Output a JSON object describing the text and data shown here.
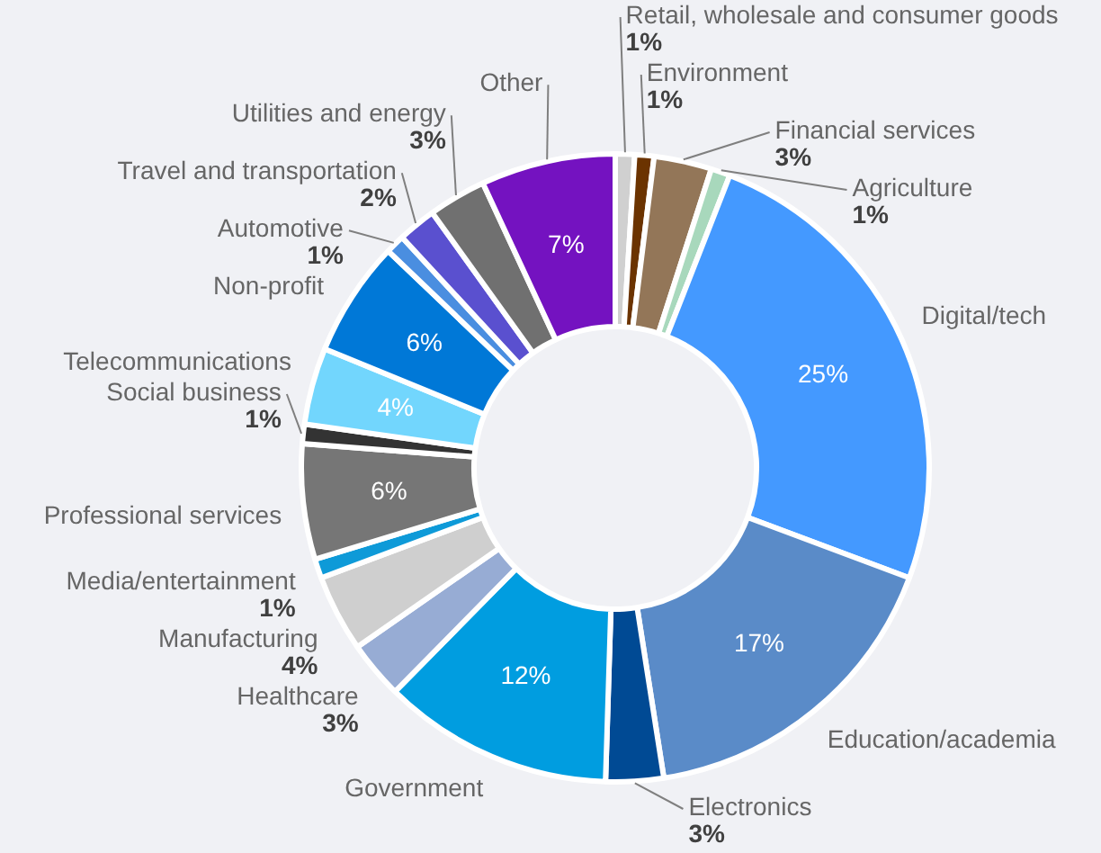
{
  "chart_data": {
    "type": "donut",
    "categories": [
      "Retail, wholesale and consumer goods",
      "Environment",
      "Financial services",
      "Agriculture",
      "Digital/tech",
      "Education/academia",
      "Electronics",
      "Government",
      "Healthcare",
      "Manufacturing",
      "Media/entertainment",
      "Professional services",
      "Social business",
      "Telecommunications",
      "Non-profit",
      "Automotive",
      "Travel and transportation",
      "Utilities and energy",
      "Other"
    ],
    "values": [
      1,
      1,
      3,
      1,
      25,
      17,
      3,
      12,
      3,
      4,
      1,
      6,
      1,
      4,
      6,
      1,
      2,
      3,
      7
    ],
    "value_labels": [
      "1%",
      "1%",
      "3%",
      "1%",
      "25%",
      "17%",
      "3%",
      "12%",
      "3%",
      "4%",
      "1%",
      "6%",
      "1%",
      "4%",
      "6%",
      "1%",
      "2%",
      "3%",
      "7%"
    ],
    "colors": [
      "#d0d0d0",
      "#6b3300",
      "#937658",
      "#a8d8bc",
      "#4499ff",
      "#5a8bc8",
      "#004a94",
      "#009de0",
      "#97acd4",
      "#cfcfcf",
      "#0e9ad8",
      "#767676",
      "#333333",
      "#72d6fd",
      "#0078d7",
      "#4a8ee0",
      "#5a50cf",
      "#707070",
      "#7412c0"
    ],
    "legend": false
  }
}
